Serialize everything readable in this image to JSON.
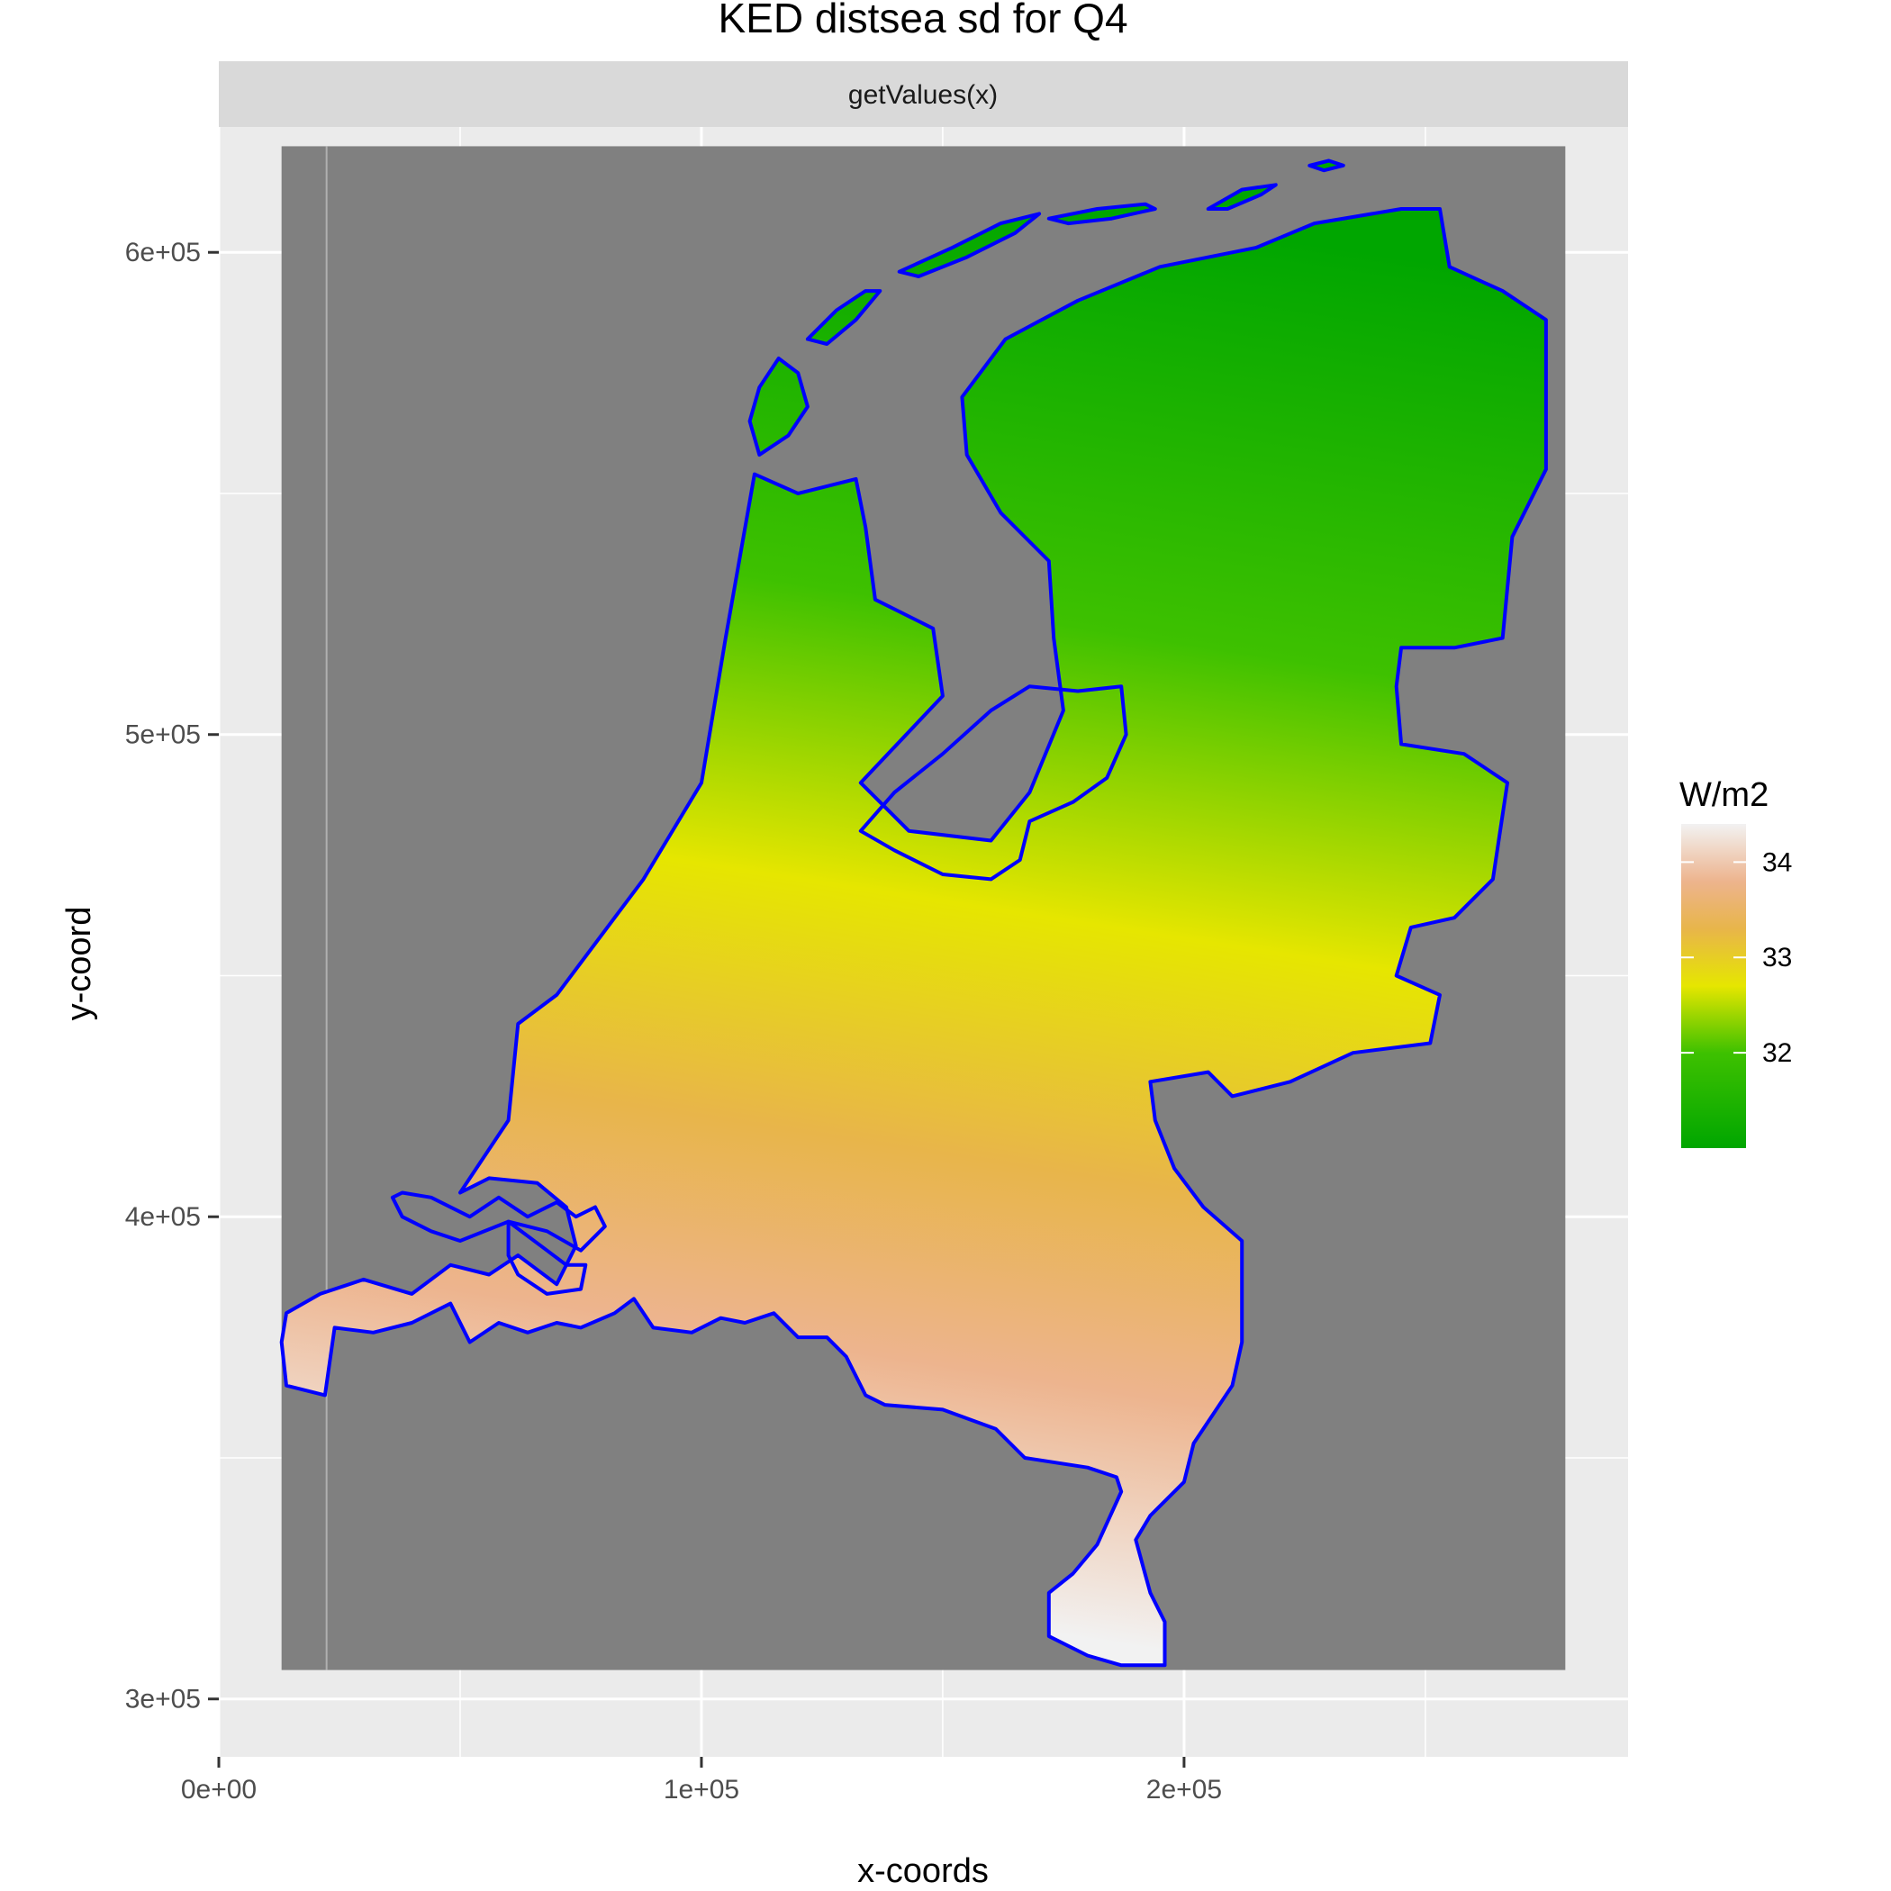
{
  "chart_data": {
    "type": "heatmap",
    "title": "KED distsea sd for Q4",
    "facet_label": "getValues(x)",
    "xlabel": "x-coords",
    "ylabel": "y-coord",
    "xlim": [
      0,
      292000
    ],
    "ylim": [
      288000,
      626000
    ],
    "x_ticks": [
      {
        "value": 0,
        "label": "0e+00"
      },
      {
        "value": 100000,
        "label": "1e+05"
      },
      {
        "value": 200000,
        "label": "2e+05"
      }
    ],
    "y_ticks": [
      {
        "value": 300000,
        "label": "3e+05"
      },
      {
        "value": 400000,
        "label": "4e+05"
      },
      {
        "value": 500000,
        "label": "5e+05"
      },
      {
        "value": 600000,
        "label": "6e+05"
      }
    ],
    "grid": true,
    "raster_extent": {
      "xmin": 13000,
      "xmax": 279000,
      "ymin": 306000,
      "ymax": 622000
    },
    "na_color": "#808080",
    "outline_color": "#0000ff",
    "legend": {
      "title": "W/m2",
      "position": "right",
      "min": 31.0,
      "max": 34.4,
      "ticks": [
        32,
        33,
        34
      ],
      "tick_labels": [
        "32",
        "33",
        "34"
      ],
      "colors": [
        {
          "value": 31.0,
          "color": "#00a600"
        },
        {
          "value": 32.0,
          "color": "#3ec100"
        },
        {
          "value": 32.7,
          "color": "#e6e600"
        },
        {
          "value": 33.3,
          "color": "#e8b54a"
        },
        {
          "value": 33.8,
          "color": "#edb48e"
        },
        {
          "value": 34.4,
          "color": "#f2f2f2"
        }
      ]
    },
    "surface_gradient": {
      "from": {
        "x": 240000,
        "y": 600000,
        "value": 31.0
      },
      "to": {
        "x": 195000,
        "y": 310000,
        "value": 34.4
      }
    },
    "land_outline": [
      [
        50000,
        405000
      ],
      [
        60000,
        420000
      ],
      [
        62000,
        440000
      ],
      [
        70000,
        446000
      ],
      [
        88000,
        470000
      ],
      [
        100000,
        490000
      ],
      [
        105000,
        520000
      ],
      [
        111000,
        554000
      ],
      [
        120000,
        550000
      ],
      [
        132000,
        553000
      ],
      [
        134000,
        543000
      ],
      [
        136000,
        528000
      ],
      [
        148000,
        522000
      ],
      [
        150000,
        508000
      ],
      [
        133000,
        490000
      ],
      [
        143000,
        480000
      ],
      [
        160000,
        478000
      ],
      [
        168000,
        488000
      ],
      [
        175000,
        505000
      ],
      [
        173000,
        520000
      ],
      [
        172000,
        536000
      ],
      [
        162000,
        546000
      ],
      [
        155000,
        558000
      ],
      [
        154000,
        570000
      ],
      [
        163000,
        582000
      ],
      [
        178000,
        590000
      ],
      [
        195000,
        597000
      ],
      [
        215000,
        601000
      ],
      [
        227000,
        606000
      ],
      [
        245000,
        609000
      ],
      [
        253000,
        609000
      ],
      [
        255000,
        597000
      ],
      [
        266000,
        592000
      ],
      [
        275000,
        586000
      ],
      [
        275000,
        570000
      ],
      [
        275000,
        555000
      ],
      [
        268000,
        541000
      ],
      [
        266000,
        520000
      ],
      [
        256000,
        518000
      ],
      [
        245000,
        518000
      ],
      [
        244000,
        510000
      ],
      [
        245000,
        498000
      ],
      [
        258000,
        496000
      ],
      [
        267000,
        490000
      ],
      [
        264000,
        470000
      ],
      [
        256000,
        462000
      ],
      [
        247000,
        460000
      ],
      [
        244000,
        450000
      ],
      [
        253000,
        446000
      ],
      [
        251000,
        436000
      ],
      [
        235000,
        434000
      ],
      [
        222000,
        428000
      ],
      [
        210000,
        425000
      ],
      [
        205000,
        430000
      ],
      [
        193000,
        428000
      ],
      [
        194000,
        420000
      ],
      [
        198000,
        410000
      ],
      [
        204000,
        402000
      ],
      [
        212000,
        395000
      ],
      [
        212000,
        374000
      ],
      [
        210000,
        365000
      ],
      [
        202000,
        353000
      ],
      [
        200000,
        345000
      ],
      [
        193000,
        338000
      ],
      [
        190000,
        333000
      ],
      [
        193000,
        322000
      ],
      [
        196000,
        316000
      ],
      [
        196000,
        307000
      ],
      [
        187000,
        307000
      ],
      [
        180000,
        309000
      ],
      [
        172000,
        313000
      ],
      [
        172000,
        322000
      ],
      [
        177000,
        326000
      ],
      [
        182000,
        332000
      ],
      [
        187000,
        343000
      ],
      [
        186000,
        346000
      ],
      [
        180000,
        348000
      ],
      [
        167000,
        350000
      ],
      [
        161000,
        356000
      ],
      [
        150000,
        360000
      ],
      [
        138000,
        361000
      ],
      [
        134000,
        363000
      ],
      [
        130000,
        371000
      ],
      [
        126000,
        375000
      ],
      [
        120000,
        375000
      ],
      [
        115000,
        380000
      ],
      [
        109000,
        378000
      ],
      [
        104000,
        379000
      ],
      [
        98000,
        376000
      ],
      [
        90000,
        377000
      ],
      [
        86000,
        383000
      ],
      [
        82000,
        380000
      ],
      [
        75000,
        377000
      ],
      [
        70000,
        378000
      ],
      [
        64000,
        376000
      ],
      [
        58000,
        378000
      ],
      [
        52000,
        374000
      ],
      [
        48000,
        382000
      ],
      [
        40000,
        378000
      ],
      [
        32000,
        376000
      ],
      [
        24000,
        377000
      ],
      [
        22000,
        363000
      ],
      [
        14000,
        365000
      ],
      [
        13000,
        374000
      ],
      [
        14000,
        380000
      ],
      [
        21000,
        384000
      ],
      [
        30000,
        387000
      ],
      [
        40000,
        384000
      ],
      [
        48000,
        390000
      ],
      [
        56000,
        388000
      ],
      [
        62000,
        392000
      ],
      [
        70000,
        386000
      ],
      [
        74000,
        394000
      ],
      [
        72000,
        402000
      ],
      [
        66000,
        407000
      ],
      [
        56000,
        408000
      ],
      [
        50000,
        405000
      ]
    ],
    "inner_outlines": [
      [
        [
          133000,
          480000
        ],
        [
          140000,
          488000
        ],
        [
          150000,
          496000
        ],
        [
          160000,
          505000
        ],
        [
          168000,
          510000
        ],
        [
          178000,
          509000
        ],
        [
          187000,
          510000
        ],
        [
          188000,
          500000
        ],
        [
          184000,
          491000
        ],
        [
          177000,
          486000
        ],
        [
          168000,
          482000
        ],
        [
          166000,
          474000
        ],
        [
          160000,
          470000
        ],
        [
          150000,
          471000
        ],
        [
          140000,
          476000
        ],
        [
          133000,
          480000
        ]
      ],
      [
        [
          38000,
          405000
        ],
        [
          44000,
          404000
        ],
        [
          52000,
          400000
        ],
        [
          58000,
          404000
        ],
        [
          64000,
          400000
        ],
        [
          70000,
          403000
        ],
        [
          74000,
          400000
        ],
        [
          78000,
          402000
        ],
        [
          80000,
          398000
        ],
        [
          75000,
          393000
        ],
        [
          68000,
          397000
        ],
        [
          60000,
          399000
        ],
        [
          50000,
          395000
        ],
        [
          44000,
          397000
        ],
        [
          38000,
          400000
        ],
        [
          36000,
          404000
        ],
        [
          38000,
          405000
        ]
      ],
      [
        [
          60000,
          399000
        ],
        [
          68000,
          393000
        ],
        [
          72000,
          390000
        ],
        [
          76000,
          390000
        ],
        [
          75000,
          385000
        ],
        [
          68000,
          384000
        ],
        [
          62000,
          388000
        ],
        [
          60000,
          392000
        ],
        [
          60000,
          399000
        ]
      ]
    ],
    "islands": [
      [
        [
          112000,
          558000
        ],
        [
          118000,
          562000
        ],
        [
          122000,
          568000
        ],
        [
          120000,
          575000
        ],
        [
          116000,
          578000
        ],
        [
          112000,
          572000
        ],
        [
          110000,
          565000
        ],
        [
          112000,
          558000
        ]
      ],
      [
        [
          122000,
          582000
        ],
        [
          128000,
          588000
        ],
        [
          134000,
          592000
        ],
        [
          137000,
          592000
        ],
        [
          132000,
          586000
        ],
        [
          126000,
          581000
        ],
        [
          122000,
          582000
        ]
      ],
      [
        [
          141000,
          596000
        ],
        [
          152000,
          601000
        ],
        [
          162000,
          606000
        ],
        [
          170000,
          608000
        ],
        [
          165000,
          604000
        ],
        [
          155000,
          599000
        ],
        [
          145000,
          595000
        ],
        [
          141000,
          596000
        ]
      ],
      [
        [
          172000,
          607000
        ],
        [
          182000,
          609000
        ],
        [
          192000,
          610000
        ],
        [
          194000,
          609000
        ],
        [
          185000,
          607000
        ],
        [
          176000,
          606000
        ],
        [
          172000,
          607000
        ]
      ],
      [
        [
          205000,
          609000
        ],
        [
          212000,
          613000
        ],
        [
          219000,
          614000
        ],
        [
          216000,
          612000
        ],
        [
          209000,
          609000
        ],
        [
          205000,
          609000
        ]
      ],
      [
        [
          226000,
          618000
        ],
        [
          230000,
          619000
        ],
        [
          233000,
          618000
        ],
        [
          229000,
          617000
        ],
        [
          226000,
          618000
        ]
      ]
    ]
  }
}
